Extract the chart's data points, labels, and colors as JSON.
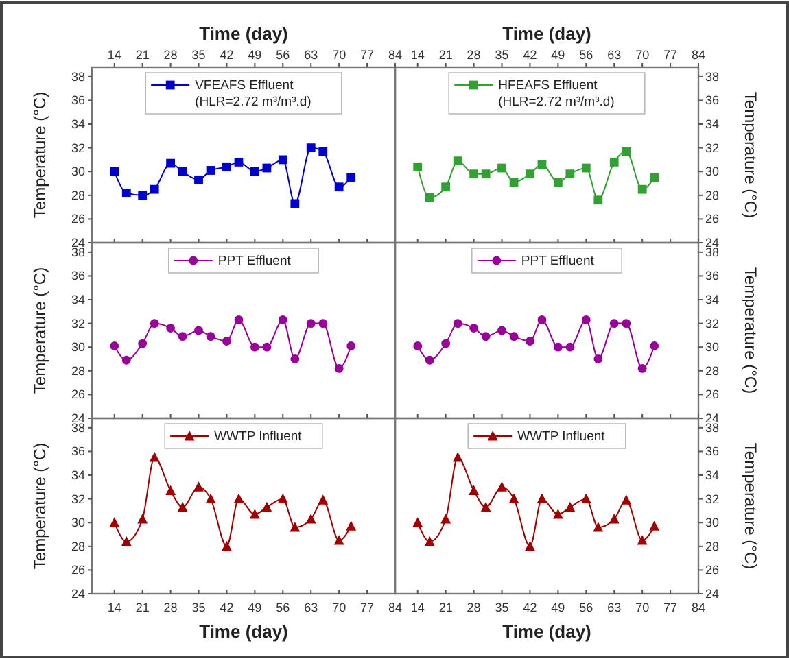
{
  "chart_data": [
    {
      "type": "line",
      "x": [
        14,
        17,
        21,
        24,
        28,
        31,
        35,
        38,
        42,
        45,
        49,
        52,
        56,
        59,
        63,
        66,
        70,
        73
      ],
      "xlim": [
        8.4,
        84
      ],
      "xticks": [
        14,
        21,
        28,
        35,
        42,
        49,
        56,
        63,
        70,
        77,
        84
      ],
      "x2lim": [
        8.4,
        84
      ],
      "x2ticks": [
        14,
        21,
        28,
        35,
        42,
        49,
        56,
        63,
        70,
        77,
        84
      ],
      "x2label": "Time (day)",
      "ylim": [
        24,
        38.8
      ],
      "yticks": [
        24,
        26,
        28,
        30,
        32,
        34,
        36,
        38
      ],
      "ylabel": "Temperature (°C)",
      "tick_labels": "y",
      "marker": "square",
      "legend": "top",
      "series": [
        {
          "name": "VFEAFS Effluent\n(HLR=2.72 m³/m³.d)",
          "color": "#0000cc",
          "values": [
            30.0,
            28.2,
            28.0,
            28.5,
            30.7,
            30.0,
            29.3,
            30.1,
            30.4,
            30.8,
            30.0,
            30.3,
            31.0,
            27.3,
            32.0,
            31.7,
            28.7,
            29.5
          ]
        }
      ]
    },
    {
      "type": "line",
      "x": [
        14,
        17,
        21,
        24,
        28,
        31,
        35,
        38,
        42,
        45,
        49,
        52,
        56,
        59,
        63,
        66,
        70,
        73
      ],
      "xlim": [
        8.4,
        84
      ],
      "xticks": [
        14,
        21,
        28,
        35,
        42,
        49,
        56,
        63,
        70,
        77,
        84
      ],
      "x2lim": [
        8.4,
        84
      ],
      "x2ticks": [
        14,
        21,
        28,
        35,
        42,
        49,
        56,
        63,
        70,
        77,
        84
      ],
      "x2label": "Time (day)",
      "y2lim": [
        24,
        38.8
      ],
      "y2ticks": [
        24,
        26,
        28,
        30,
        32,
        34,
        36,
        38
      ],
      "y2label": "Temperature (°C)",
      "tick_labels": "y",
      "marker": "square",
      "legend": "top",
      "series": [
        {
          "name": "HFEAFS Effluent\n(HLR=2.72 m³/m³.d)",
          "color": "#33a033",
          "axis": "y2",
          "values": [
            30.4,
            27.8,
            28.7,
            30.9,
            29.8,
            29.8,
            30.3,
            29.1,
            29.8,
            30.6,
            29.1,
            29.8,
            30.3,
            27.6,
            30.8,
            31.7,
            28.5,
            29.5
          ]
        }
      ]
    },
    {
      "type": "line",
      "x": [
        14,
        17,
        21,
        24,
        28,
        31,
        35,
        38,
        42,
        45,
        49,
        52,
        56,
        59,
        63,
        66,
        70,
        73
      ],
      "xlim": [
        8.4,
        84
      ],
      "xticks": [
        14,
        21,
        28,
        35,
        42,
        49,
        56,
        63,
        70,
        77,
        84
      ],
      "ylim": [
        24,
        38.8
      ],
      "yticks": [
        24,
        26,
        28,
        30,
        32,
        34,
        36,
        38
      ],
      "ylabel": "Temperature (°C)",
      "tick_labels": "y",
      "marker": "circle",
      "legend": "top",
      "series": [
        {
          "name": "PPT Effluent",
          "color": "#990099",
          "values": [
            30.1,
            28.9,
            30.3,
            32.0,
            31.6,
            30.9,
            31.4,
            30.9,
            30.5,
            32.3,
            30.0,
            30.0,
            32.3,
            29.0,
            32.0,
            32.0,
            28.2,
            30.1
          ]
        }
      ]
    },
    {
      "type": "line",
      "x": [
        14,
        17,
        21,
        24,
        28,
        31,
        35,
        38,
        42,
        45,
        49,
        52,
        56,
        59,
        63,
        66,
        70,
        73
      ],
      "xlim": [
        8.4,
        84
      ],
      "xticks": [
        14,
        21,
        28,
        35,
        42,
        49,
        56,
        63,
        70,
        77,
        84
      ],
      "y2lim": [
        24,
        38.8
      ],
      "y2ticks": [
        24,
        26,
        28,
        30,
        32,
        34,
        36,
        38
      ],
      "y2label": "Temperature (°C)",
      "tick_labels": "y",
      "marker": "circle",
      "legend": "top",
      "series": [
        {
          "name": "PPT Effluent",
          "color": "#990099",
          "axis": "y2",
          "values": [
            30.1,
            28.9,
            30.3,
            32.0,
            31.6,
            30.9,
            31.4,
            30.9,
            30.5,
            32.3,
            30.0,
            30.0,
            32.3,
            29.0,
            32.0,
            32.0,
            28.2,
            30.1
          ]
        }
      ]
    },
    {
      "type": "line",
      "x": [
        14,
        17,
        21,
        24,
        28,
        31,
        35,
        38,
        42,
        45,
        49,
        52,
        56,
        59,
        63,
        66,
        70,
        73
      ],
      "xlim": [
        8.4,
        84
      ],
      "xticks": [
        14,
        21,
        28,
        35,
        42,
        49,
        56,
        63,
        70,
        77,
        84
      ],
      "xlabel": "Time (day)",
      "ylim": [
        24,
        38.8
      ],
      "yticks": [
        24,
        26,
        28,
        30,
        32,
        34,
        36,
        38
      ],
      "ylabel": "Temperature (°C)",
      "marker": "triangle",
      "legend": "top",
      "series": [
        {
          "name": "WWTP Influent",
          "color": "#a00000",
          "values": [
            30.0,
            28.4,
            30.3,
            35.5,
            32.7,
            31.3,
            33.0,
            32.0,
            28.0,
            32.0,
            30.7,
            31.3,
            32.0,
            29.6,
            30.3,
            31.9,
            28.5,
            29.7
          ]
        }
      ]
    },
    {
      "type": "line",
      "x": [
        14,
        17,
        21,
        24,
        28,
        31,
        35,
        38,
        42,
        45,
        49,
        52,
        56,
        59,
        63,
        66,
        70,
        73
      ],
      "xlim": [
        8.4,
        84
      ],
      "xticks": [
        14,
        21,
        28,
        35,
        42,
        49,
        56,
        63,
        70,
        77,
        84
      ],
      "xlabel": "Time (day)",
      "y2lim": [
        24,
        38.8
      ],
      "y2ticks": [
        24,
        26,
        28,
        30,
        32,
        34,
        36,
        38
      ],
      "y2label": "Temperature (°C)",
      "marker": "triangle",
      "legend": "top",
      "series": [
        {
          "name": "WWTP Influent",
          "color": "#a00000",
          "axis": "y2",
          "values": [
            30.0,
            28.4,
            30.3,
            35.5,
            32.7,
            31.3,
            33.0,
            32.0,
            28.0,
            32.0,
            30.7,
            31.3,
            32.0,
            29.6,
            30.3,
            31.9,
            28.5,
            29.7
          ]
        }
      ]
    }
  ]
}
